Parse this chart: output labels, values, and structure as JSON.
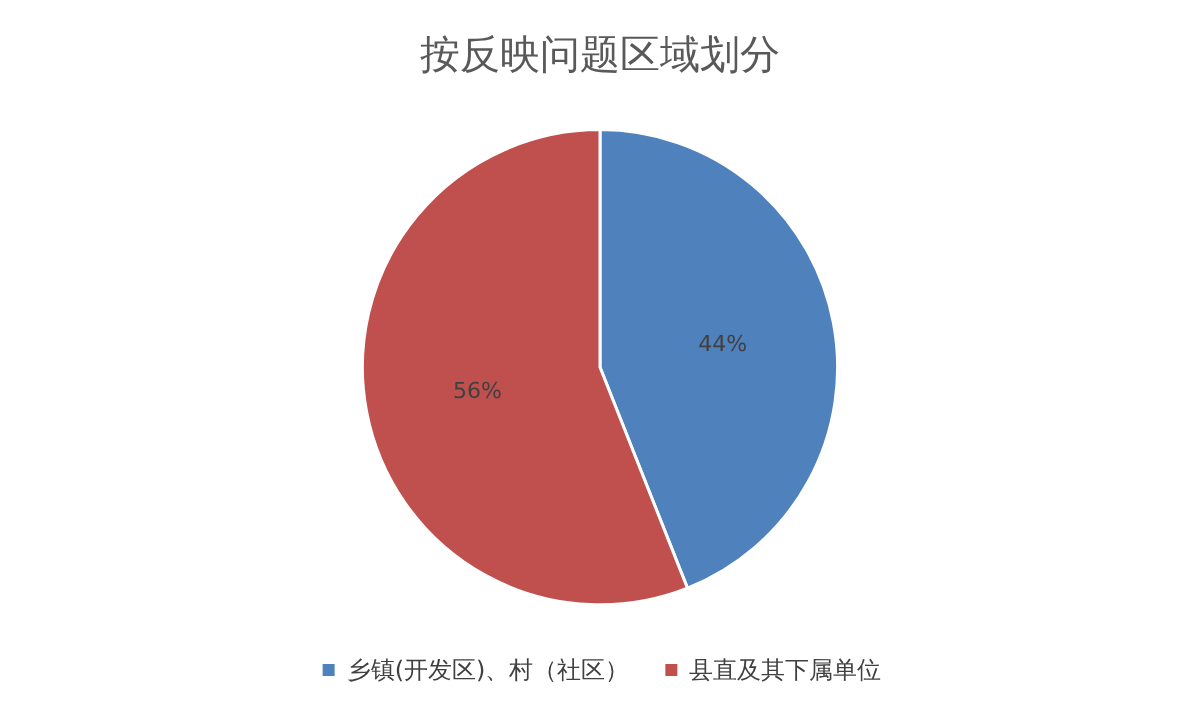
{
  "chart_data": {
    "type": "pie",
    "title": "按反映问题区域划分",
    "categories": [
      "乡镇(开发区)、村（社区）",
      "县直及其下属单位"
    ],
    "values": [
      44,
      56
    ],
    "value_labels": [
      "44%",
      "56%"
    ],
    "colors": [
      "#4f81bd",
      "#c0504d"
    ],
    "legend": "bottom"
  }
}
